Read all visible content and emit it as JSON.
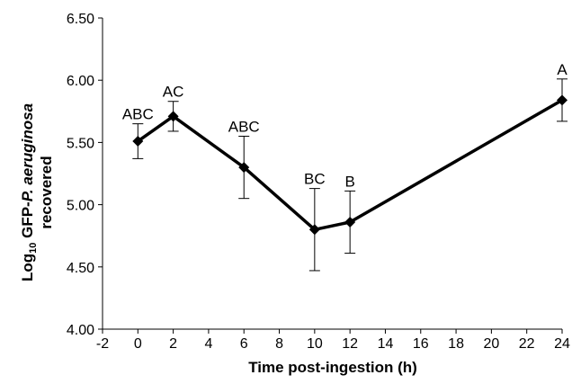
{
  "chart_data": {
    "type": "line",
    "title": "",
    "xlabel": "Time post-ingestion (h)",
    "ylabel": {
      "prefix": "Log",
      "subscript": "10",
      "main": " GFP-",
      "italic": "P. aeruginosa",
      "line2": "recovered"
    },
    "xlim": [
      -2,
      24
    ],
    "ylim": [
      4.0,
      6.5
    ],
    "x_ticks": [
      "-2",
      "0",
      "2",
      "4",
      "6",
      "8",
      "10",
      "12",
      "14",
      "16",
      "18",
      "20",
      "22",
      "24"
    ],
    "y_ticks": [
      "4.00",
      "4.50",
      "5.00",
      "5.50",
      "6.00",
      "6.50"
    ],
    "grid": false,
    "legend": "none",
    "series": [
      {
        "color": "#000000",
        "marker": "diamond",
        "points": [
          {
            "x": 0,
            "y": 5.51,
            "err": 0.14,
            "label": "ABC"
          },
          {
            "x": 2,
            "y": 5.71,
            "err": 0.12,
            "label": "AC"
          },
          {
            "x": 6,
            "y": 5.3,
            "err": 0.25,
            "label": "ABC"
          },
          {
            "x": 10,
            "y": 4.8,
            "err": 0.33,
            "label": "BC"
          },
          {
            "x": 12,
            "y": 4.86,
            "err": 0.25,
            "label": "B"
          },
          {
            "x": 24,
            "y": 5.84,
            "err": 0.17,
            "label": "A"
          }
        ]
      }
    ]
  }
}
